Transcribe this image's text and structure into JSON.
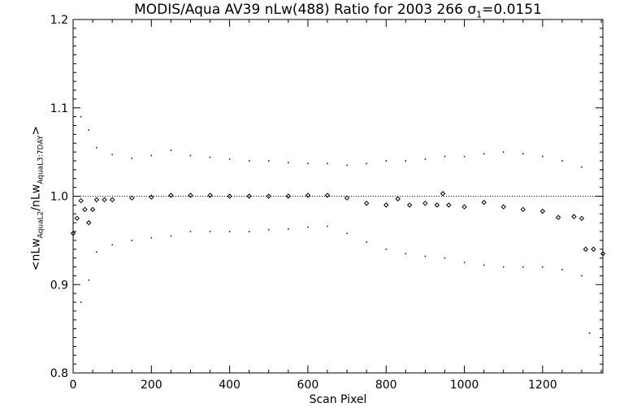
{
  "chart_data": {
    "type": "scatter",
    "title_parts": {
      "main": "MODIS/Aqua AV39 nLw(488) Ratio for 2003 266 ",
      "sigma_symbol": "σ",
      "sigma_sub": "1",
      "sigma_value": "=0.0151"
    },
    "xlabel": "Scan Pixel",
    "ylabel_parts": {
      "open": "<nLw",
      "sub1": "AquaL2",
      "mid": "/nLw",
      "sub2": "AquaL3:7DAY",
      "close": ">"
    },
    "xlim": [
      0,
      1354
    ],
    "ylim": [
      0.8,
      1.2
    ],
    "x_ticks": [
      0,
      200,
      400,
      600,
      800,
      1000,
      1200
    ],
    "x_tick_labels": [
      "0",
      "200",
      "400",
      "600",
      "800",
      "1000",
      "1200"
    ],
    "y_ticks": [
      0.8,
      0.9,
      1.0,
      1.1,
      1.2
    ],
    "y_tick_labels": [
      "0.8",
      "0.9",
      "1.0",
      "1.1",
      "1.2"
    ],
    "reference_line": 1.0,
    "series": [
      {
        "role": "mean ratio",
        "marker": "diamond",
        "points": [
          [
            0,
            0.958
          ],
          [
            10,
            0.975
          ],
          [
            20,
            0.995
          ],
          [
            30,
            0.985
          ],
          [
            40,
            0.97
          ],
          [
            50,
            0.985
          ],
          [
            60,
            0.996
          ],
          [
            80,
            0.996
          ],
          [
            100,
            0.996
          ],
          [
            150,
            0.998
          ],
          [
            200,
            0.999
          ],
          [
            250,
            1.001
          ],
          [
            300,
            1.001
          ],
          [
            350,
            1.001
          ],
          [
            400,
            1.0
          ],
          [
            450,
            1.0
          ],
          [
            500,
            1.0
          ],
          [
            550,
            1.0
          ],
          [
            600,
            1.001
          ],
          [
            650,
            1.001
          ],
          [
            700,
            0.998
          ],
          [
            750,
            0.992
          ],
          [
            800,
            0.99
          ],
          [
            830,
            0.997
          ],
          [
            860,
            0.99
          ],
          [
            900,
            0.992
          ],
          [
            930,
            0.99
          ],
          [
            945,
            1.003
          ],
          [
            960,
            0.99
          ],
          [
            1000,
            0.988
          ],
          [
            1050,
            0.993
          ],
          [
            1100,
            0.988
          ],
          [
            1150,
            0.985
          ],
          [
            1200,
            0.983
          ],
          [
            1240,
            0.976
          ],
          [
            1280,
            0.977
          ],
          [
            1300,
            0.975
          ],
          [
            1310,
            0.94
          ],
          [
            1330,
            0.94
          ],
          [
            1354,
            0.935
          ]
        ]
      },
      {
        "role": "upper envelope",
        "marker": "dot",
        "points": [
          [
            20,
            1.09
          ],
          [
            40,
            1.075
          ],
          [
            60,
            1.055
          ],
          [
            100,
            1.047
          ],
          [
            150,
            1.043
          ],
          [
            200,
            1.046
          ],
          [
            250,
            1.052
          ],
          [
            300,
            1.046
          ],
          [
            350,
            1.044
          ],
          [
            400,
            1.042
          ],
          [
            450,
            1.04
          ],
          [
            500,
            1.04
          ],
          [
            550,
            1.038
          ],
          [
            600,
            1.037
          ],
          [
            650,
            1.037
          ],
          [
            700,
            1.035
          ],
          [
            750,
            1.037
          ],
          [
            800,
            1.04
          ],
          [
            850,
            1.04
          ],
          [
            900,
            1.042
          ],
          [
            950,
            1.045
          ],
          [
            1000,
            1.045
          ],
          [
            1050,
            1.048
          ],
          [
            1100,
            1.05
          ],
          [
            1150,
            1.048
          ],
          [
            1200,
            1.045
          ],
          [
            1250,
            1.04
          ],
          [
            1300,
            1.033
          ],
          [
            1354,
            1.03
          ]
        ]
      },
      {
        "role": "lower envelope",
        "marker": "dot",
        "points": [
          [
            20,
            0.88
          ],
          [
            40,
            0.905
          ],
          [
            60,
            0.937
          ],
          [
            100,
            0.945
          ],
          [
            150,
            0.95
          ],
          [
            200,
            0.953
          ],
          [
            250,
            0.955
          ],
          [
            300,
            0.96
          ],
          [
            350,
            0.96
          ],
          [
            400,
            0.96
          ],
          [
            450,
            0.96
          ],
          [
            500,
            0.962
          ],
          [
            550,
            0.963
          ],
          [
            600,
            0.965
          ],
          [
            650,
            0.966
          ],
          [
            700,
            0.958
          ],
          [
            750,
            0.948
          ],
          [
            800,
            0.94
          ],
          [
            850,
            0.935
          ],
          [
            900,
            0.932
          ],
          [
            950,
            0.93
          ],
          [
            1000,
            0.925
          ],
          [
            1050,
            0.922
          ],
          [
            1100,
            0.92
          ],
          [
            1150,
            0.92
          ],
          [
            1200,
            0.92
          ],
          [
            1250,
            0.917
          ],
          [
            1300,
            0.91
          ],
          [
            1320,
            0.845
          ],
          [
            1354,
            0.843
          ]
        ]
      }
    ]
  }
}
